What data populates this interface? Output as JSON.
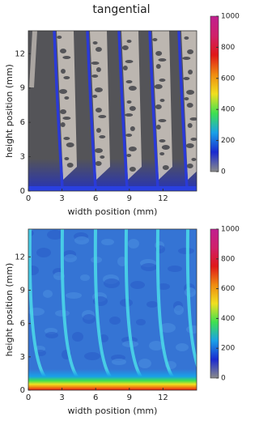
{
  "chart_data": [
    {
      "type": "heatmap",
      "title": "tangential",
      "x_label": "width position (mm)",
      "y_label": "height position (mm)",
      "xlim": [
        0,
        15
      ],
      "xticks": [
        0,
        3,
        6,
        9,
        12
      ],
      "ylim": [
        0,
        14
      ],
      "yticks": [
        0,
        3,
        6,
        9,
        12
      ],
      "colorbar_lim": [
        0,
        1000
      ],
      "colorbar_ticks": [
        0,
        200,
        400,
        600,
        800,
        1000
      ],
      "colormap": [
        "#8a8a8a",
        "#1a2ad0",
        "#19a0e8",
        "#3ee050",
        "#f0e020",
        "#f08a10",
        "#e01818",
        "#d0206a",
        "#c02090"
      ]
    },
    {
      "type": "heatmap",
      "x_label": "width position (mm)",
      "y_label": "height position (mm)",
      "xlim": [
        0,
        15
      ],
      "xticks": [
        0,
        3,
        6,
        9,
        12
      ],
      "ylim": [
        0,
        14.5
      ],
      "yticks": [
        0,
        3,
        6,
        9,
        12
      ],
      "colorbar_lim": [
        0,
        1000
      ],
      "colorbar_ticks": [
        0,
        200,
        400,
        600,
        800,
        1000
      ],
      "colormap": [
        "#8a8a8a",
        "#1a2ad0",
        "#19a0e8",
        "#3ee050",
        "#f0e020",
        "#f08a10",
        "#e01818",
        "#d0206a",
        "#c02090"
      ]
    }
  ]
}
